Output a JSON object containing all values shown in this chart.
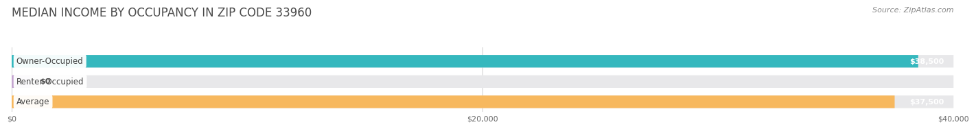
{
  "title": "MEDIAN INCOME BY OCCUPANCY IN ZIP CODE 33960",
  "source": "Source: ZipAtlas.com",
  "categories": [
    "Owner-Occupied",
    "Renter-Occupied",
    "Average"
  ],
  "values": [
    38500,
    0,
    37500
  ],
  "bar_colors": [
    "#35b8be",
    "#c4a5d0",
    "#f7b85e"
  ],
  "bar_bg_color": "#e8e8ea",
  "xlim": [
    0,
    40000
  ],
  "xticks": [
    0,
    20000,
    40000
  ],
  "xtick_labels": [
    "$0",
    "$20,000",
    "$40,000"
  ],
  "value_labels": [
    "$38,500",
    "$0",
    "$37,500"
  ],
  "title_fontsize": 12,
  "source_fontsize": 8,
  "label_fontsize": 8.5,
  "value_fontsize": 8,
  "bg_color": "#ffffff"
}
